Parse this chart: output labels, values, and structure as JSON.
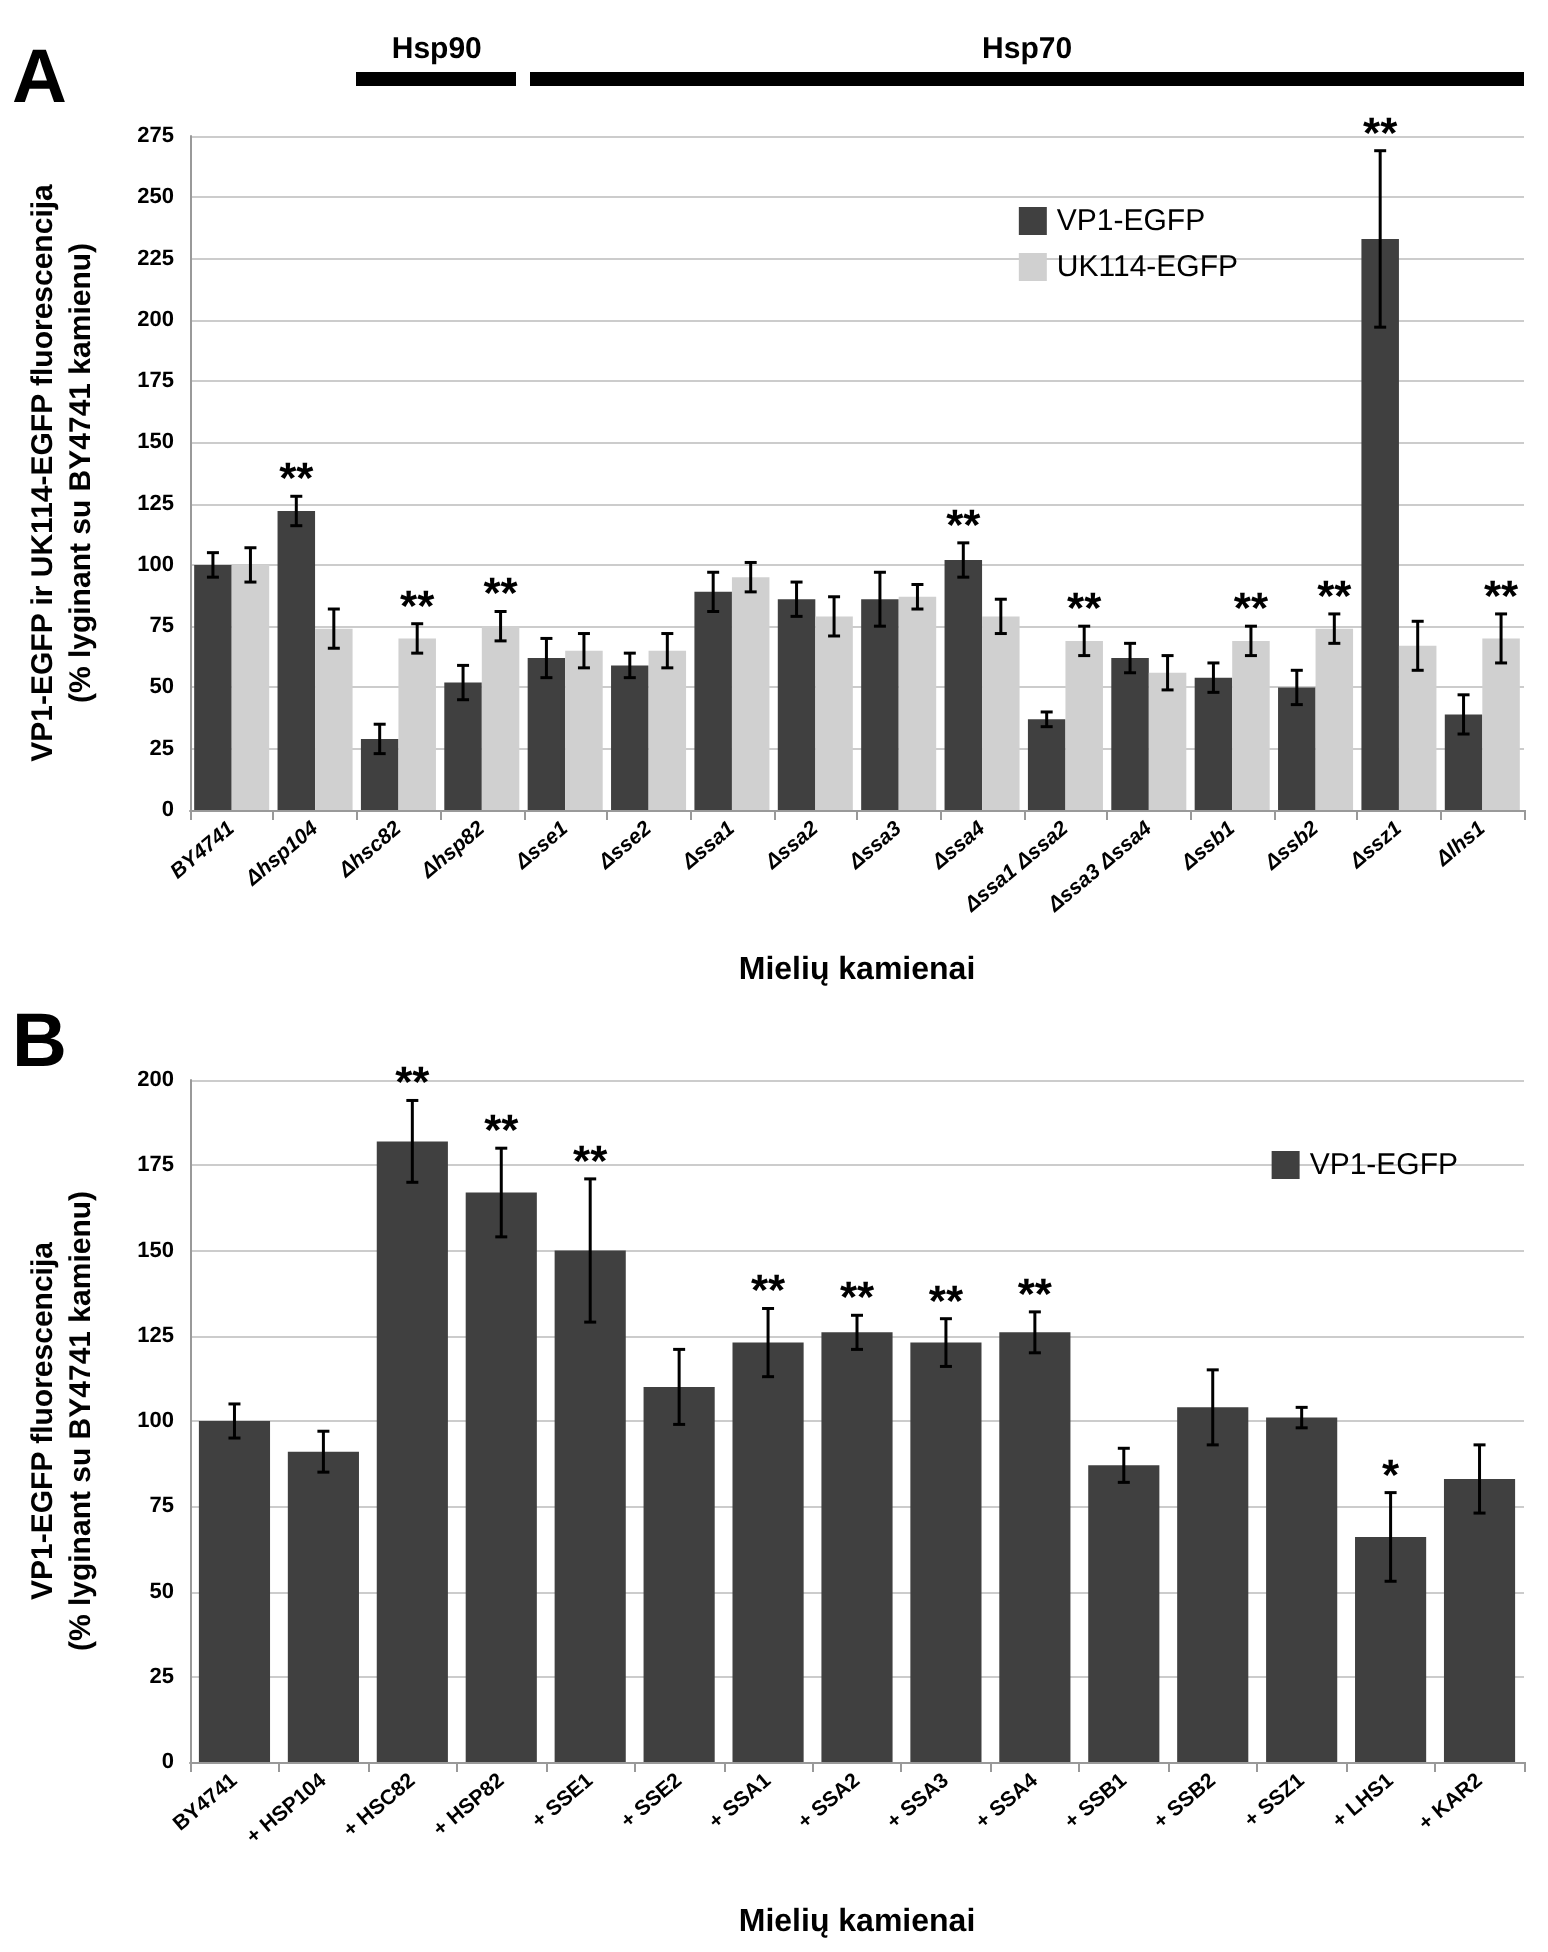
{
  "chart_data": [
    {
      "type": "bar",
      "title": "A",
      "xlabel": "Mielių kamienai",
      "ylabel": "VP1-EGFP ir UK114-EGFP fluorescencija\n(% lyginant su BY4741 kamienu)",
      "categories": [
        "BY4741",
        "Δhsp104",
        "Δhsc82",
        "Δhsp82",
        "Δsse1",
        "Δsse2",
        "Δssa1",
        "Δssa2",
        "Δssa3",
        "Δssa4",
        "Δssa1 Δssa2",
        "Δssa3 Δssa4",
        "Δssb1",
        "Δssb2",
        "Δssz1",
        "Δlhs1"
      ],
      "series": [
        {
          "name": "VP1-EGFP",
          "color": "#404040",
          "values": [
            100,
            122,
            29,
            52,
            62,
            59,
            89,
            86,
            86,
            102,
            37,
            62,
            54,
            50,
            233,
            39
          ],
          "errors": [
            5,
            6,
            6,
            7,
            8,
            5,
            8,
            7,
            11,
            7,
            3,
            6,
            6,
            7,
            36,
            8
          ]
        },
        {
          "name": "UK114-EGFP",
          "color": "#d0d0d0",
          "values": [
            100,
            74,
            70,
            75,
            65,
            65,
            95,
            79,
            87,
            79,
            69,
            56,
            69,
            74,
            67,
            70
          ],
          "errors": [
            7,
            8,
            6,
            6,
            7,
            7,
            6,
            8,
            5,
            7,
            6,
            7,
            6,
            6,
            10,
            10
          ]
        }
      ],
      "ylim": [
        0,
        275
      ],
      "yticks": [
        0,
        25,
        50,
        75,
        100,
        125,
        150,
        175,
        200,
        225,
        250,
        275
      ],
      "grid": "y",
      "legend": "top right",
      "annotations": [
        "Hsp90",
        "Hsp70",
        {
          "text": "**",
          "x": "Δhsp104",
          "y": 122
        },
        {
          "text": "**",
          "x": "Δhsc82",
          "y": 70
        },
        {
          "text": "**",
          "x": "Δhsp82",
          "y": 75
        },
        {
          "text": "**",
          "x": "Δssa4",
          "y": 102
        },
        {
          "text": "**",
          "x": "Δssa1 Δssa2",
          "y": 69
        },
        {
          "text": "**",
          "x": "Δssb1",
          "y": 69
        },
        {
          "text": "**",
          "x": "Δssb2",
          "y": 74
        },
        {
          "text": "**",
          "x": "Δssz1",
          "y": 233
        },
        {
          "text": "**",
          "x": "Δlhs1",
          "y": 70
        }
      ]
    },
    {
      "type": "bar",
      "title": "B",
      "xlabel": "Mielių kamienai",
      "ylabel": "VP1-EGFP fluorescencija\n(% lyginant su BY4741 kamienu)",
      "categories": [
        "BY4741",
        "+ HSP104",
        "+ HSC82",
        "+ HSP82",
        "+ SSE1",
        "+ SSE2",
        "+ SSA1",
        "+ SSA2",
        "+ SSA3",
        "+ SSA4",
        "+ SSB1",
        "+ SSB2",
        "+ SSZ1",
        "+ LHS1",
        "+ KAR2"
      ],
      "series": [
        {
          "name": "VP1-EGFP",
          "color": "#404040",
          "values": [
            100,
            91,
            182,
            167,
            150,
            110,
            123,
            126,
            123,
            126,
            87,
            104,
            101,
            66,
            83
          ],
          "errors": [
            5,
            6,
            12,
            13,
            21,
            11,
            10,
            5,
            7,
            6,
            5,
            11,
            3,
            13,
            10
          ]
        }
      ],
      "ylim": [
        0,
        200
      ],
      "yticks": [
        0,
        25,
        50,
        75,
        100,
        125,
        150,
        175,
        200
      ],
      "grid": "y",
      "legend": "top right",
      "annotations": [
        {
          "text": "**",
          "x": "+ HSC82",
          "y": 182
        },
        {
          "text": "**",
          "x": "+ HSP82",
          "y": 167
        },
        {
          "text": "**",
          "x": "+ SSE1",
          "y": 150
        },
        {
          "text": "**",
          "x": "+ SSA1",
          "y": 123
        },
        {
          "text": "**",
          "x": "+ SSA2",
          "y": 126
        },
        {
          "text": "**",
          "x": "+ SSA3",
          "y": 123
        },
        {
          "text": "**",
          "x": "+ SSA4",
          "y": 126
        },
        {
          "text": "*",
          "x": "+ LHS1",
          "y": 66
        }
      ]
    }
  ]
}
